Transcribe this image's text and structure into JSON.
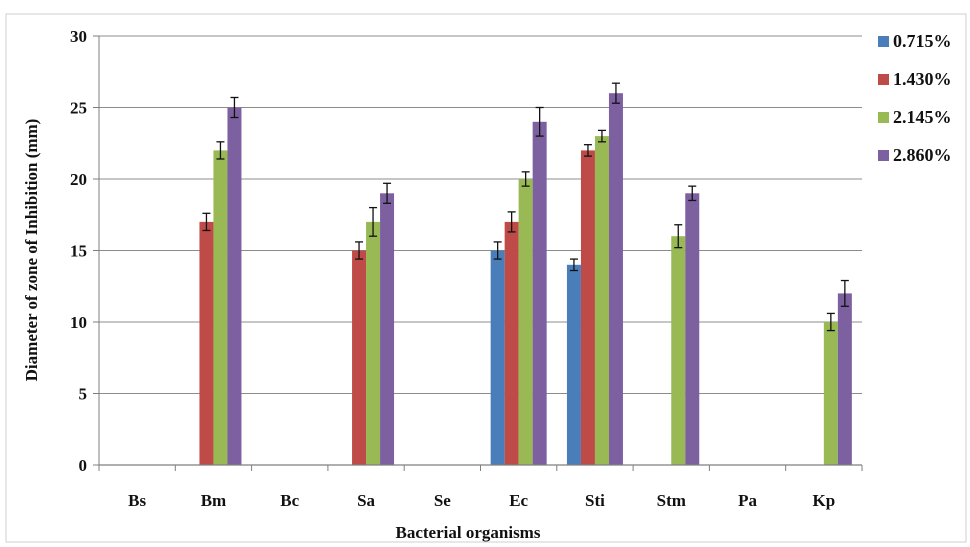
{
  "chart_data": {
    "type": "bar",
    "title": "",
    "xlabel": "Bacterial organisms",
    "ylabel": "Diameter of zone of Inhibition (mm)",
    "ylim": [
      0,
      30
    ],
    "yticks": [
      0,
      5,
      10,
      15,
      20,
      25,
      30
    ],
    "grid": true,
    "legend_position": "right",
    "categories": [
      "Bs",
      "Bm",
      "Bc",
      "Sa",
      "Se",
      "Ec",
      "Sti",
      "Stm",
      "Pa",
      "Kp"
    ],
    "series": [
      {
        "name": "0.715%",
        "color": "#4a7ebb",
        "values": [
          0,
          0,
          0,
          0,
          0,
          15,
          14,
          0,
          0,
          0
        ],
        "errors": [
          0,
          0,
          0,
          0,
          0,
          0.6,
          0.4,
          0,
          0,
          0
        ]
      },
      {
        "name": "1.430%",
        "color": "#be4b48",
        "values": [
          0,
          17,
          0,
          15,
          0,
          17,
          22,
          0,
          0,
          0
        ],
        "errors": [
          0,
          0.6,
          0,
          0.6,
          0,
          0.7,
          0.4,
          0,
          0,
          0
        ]
      },
      {
        "name": "2.145%",
        "color": "#98b954",
        "values": [
          0,
          22,
          0,
          17,
          0,
          20,
          23,
          16,
          0,
          10
        ],
        "errors": [
          0,
          0.6,
          0,
          1.0,
          0,
          0.5,
          0.4,
          0.8,
          0,
          0.6
        ]
      },
      {
        "name": "2.860%",
        "color": "#7d60a0",
        "values": [
          0,
          25,
          0,
          19,
          0,
          24,
          26,
          19,
          0,
          12
        ],
        "errors": [
          0,
          0.7,
          0,
          0.7,
          0,
          1.0,
          0.7,
          0.5,
          0,
          0.9
        ]
      }
    ]
  }
}
